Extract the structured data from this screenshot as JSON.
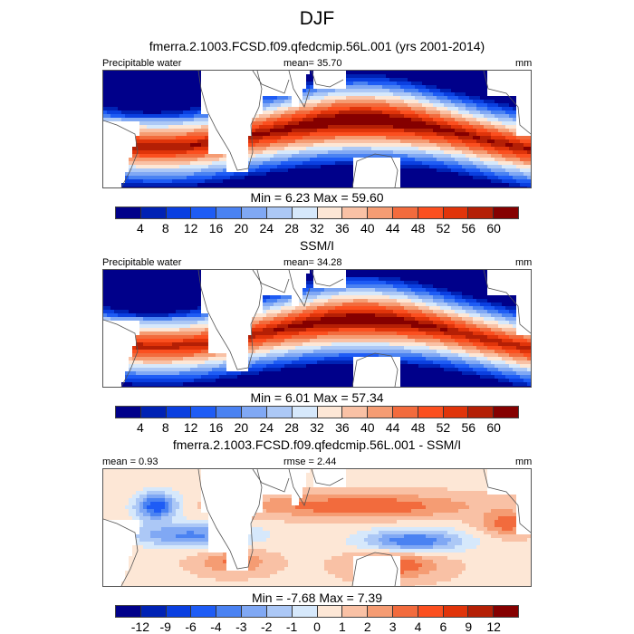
{
  "figure": {
    "season": "DJF",
    "panels": [
      {
        "id": "model",
        "title": "fmerra.2.1003.FCSD.f09.qfedcmip.56L.001 (yrs 2001-2014)",
        "left_label": "Precipitable water",
        "center_label": "mean=  35.70",
        "right_label": "mm",
        "min_max": "Min =   6.23 Max =  59.60",
        "colorbar": "abs"
      },
      {
        "id": "obs",
        "title": "SSM/I",
        "left_label": "Precipitable water",
        "center_label": "mean=  34.28",
        "right_label": "mm",
        "min_max": "Min =   6.01 Max =  57.34",
        "colorbar": "abs"
      },
      {
        "id": "diff",
        "title": "fmerra.2.1003.FCSD.f09.qfedcmip.56L.001 - SSM/I",
        "left_label": "mean =   0.93",
        "center_label": "rmse =   2.44",
        "right_label": "mm",
        "min_max": "Min =  -7.68 Max =   7.39",
        "colorbar": "diff"
      }
    ]
  },
  "colorbars": {
    "abs": {
      "levels": [
        "4",
        "8",
        "12",
        "16",
        "20",
        "24",
        "28",
        "32",
        "36",
        "40",
        "44",
        "48",
        "52",
        "56",
        "60"
      ]
    },
    "diff": {
      "levels": [
        "-12",
        "-9",
        "-6",
        "-4",
        "-3",
        "-2",
        "-1",
        "0",
        "1",
        "2",
        "3",
        "4",
        "6",
        "9",
        "12"
      ]
    },
    "colors": [
      "#00008a",
      "#0022b4",
      "#0a3fe0",
      "#1e5cf5",
      "#4a82f2",
      "#80a8f4",
      "#acc8f6",
      "#d6e8fb",
      "#fde7d6",
      "#f9c1a5",
      "#f59c73",
      "#f26b3d",
      "#fb4f1f",
      "#e0340a",
      "#b41f05",
      "#850000"
    ]
  },
  "chart_data": [
    {
      "type": "heatmap",
      "title": "fmerra.2.1003.FCSD.f09.qfedcmip.56L.001 (yrs 2001-2014)",
      "variable": "Precipitable water",
      "units": "mm",
      "mean": 35.7,
      "min": 6.23,
      "max": 59.6,
      "contour_levels": [
        4,
        8,
        12,
        16,
        20,
        24,
        28,
        32,
        36,
        40,
        44,
        48,
        52,
        56,
        60
      ]
    },
    {
      "type": "heatmap",
      "title": "SSM/I",
      "variable": "Precipitable water",
      "units": "mm",
      "mean": 34.28,
      "min": 6.01,
      "max": 57.34,
      "contour_levels": [
        4,
        8,
        12,
        16,
        20,
        24,
        28,
        32,
        36,
        40,
        44,
        48,
        52,
        56,
        60
      ]
    },
    {
      "type": "heatmap",
      "title": "fmerra.2.1003.FCSD.f09.qfedcmip.56L.001 - SSM/I",
      "units": "mm",
      "mean": 0.93,
      "rmse": 2.44,
      "min": -7.68,
      "max": 7.39,
      "contour_levels": [
        -12,
        -9,
        -6,
        -4,
        -3,
        -2,
        -1,
        0,
        1,
        2,
        3,
        4,
        6,
        9,
        12
      ]
    }
  ]
}
